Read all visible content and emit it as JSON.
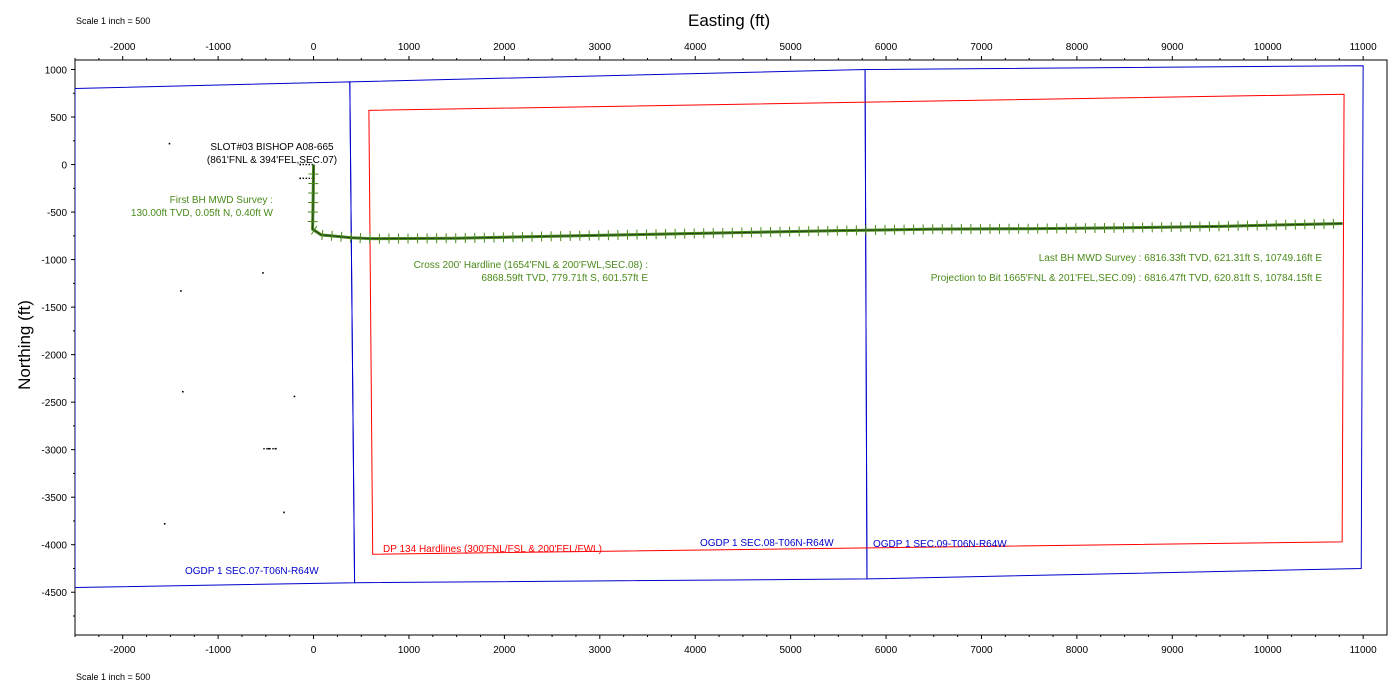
{
  "header": {
    "scale_top": "Scale 1 inch = 500",
    "scale_bottom": "Scale 1 inch = 500"
  },
  "chart_data": {
    "type": "line",
    "title": "",
    "xlabel": "Easting (ft)",
    "ylabel": "Northing (ft)",
    "xlim": [
      -2500,
      11250
    ],
    "ylim": [
      -4950,
      1100
    ],
    "x_ticks": [
      -2000,
      -1000,
      0,
      1000,
      2000,
      3000,
      4000,
      5000,
      6000,
      7000,
      8000,
      9000,
      10000,
      11000
    ],
    "y_ticks": [
      1000,
      500,
      0,
      -500,
      -1000,
      -1500,
      -2000,
      -2500,
      -3000,
      -3500,
      -4000,
      -4500
    ],
    "grid": false,
    "colors": {
      "section": "#0000cc",
      "hardline": "#ff0000",
      "wellpath": "#4a8a1a",
      "wellpath_line": "#1f3f1f",
      "slot": "#000000"
    },
    "sections": [
      {
        "name": "OGDP 1 SEC.07-T06N-R64W",
        "points": [
          [
            -2500,
            800
          ],
          [
            380,
            870
          ],
          [
            430,
            -4400
          ],
          [
            -2500,
            -4450
          ]
        ]
      },
      {
        "name": "OGDP 1 SEC.08-T06N-R64W",
        "points": [
          [
            380,
            870
          ],
          [
            5780,
            1000
          ],
          [
            5800,
            -4360
          ],
          [
            430,
            -4400
          ]
        ]
      },
      {
        "name": "OGDP 1 SEC.09-T06N-R64W",
        "points": [
          [
            5780,
            1000
          ],
          [
            11000,
            1040
          ],
          [
            10980,
            -4250
          ],
          [
            5800,
            -4360
          ]
        ]
      }
    ],
    "hardline": {
      "name": "DP 134 Hardlines (300'FNL/FSL & 200'FEL/FWL)",
      "points": [
        [
          580,
          570
        ],
        [
          10800,
          740
        ],
        [
          10780,
          -3970
        ],
        [
          620,
          -4100
        ]
      ]
    },
    "wellpath": {
      "name": "SLOT#03 BISHOP A08-665",
      "points": [
        [
          0,
          0
        ],
        [
          -1,
          -130
        ],
        [
          -5,
          -400
        ],
        [
          -10,
          -680
        ],
        [
          80,
          -740
        ],
        [
          400,
          -770
        ],
        [
          601.57,
          -779.71
        ],
        [
          1500,
          -775
        ],
        [
          2500,
          -755
        ],
        [
          3500,
          -735
        ],
        [
          4500,
          -715
        ],
        [
          5500,
          -695
        ],
        [
          6500,
          -680
        ],
        [
          7500,
          -675
        ],
        [
          8500,
          -665
        ],
        [
          9500,
          -650
        ],
        [
          10749.16,
          -621.31
        ],
        [
          10784.15,
          -620.81
        ]
      ]
    },
    "wellpath_survey_interval_ft": 100,
    "slot_markers": [
      [
        -1510,
        220
      ],
      [
        -530,
        -1140
      ],
      [
        -1390,
        -1330
      ],
      [
        -1370,
        -2390
      ],
      [
        -200,
        -2440
      ],
      [
        -1560,
        -3780
      ],
      [
        -310,
        -3660
      ],
      [
        -400,
        -2990
      ],
      [
        -140,
        0
      ],
      [
        -140,
        -145
      ],
      [
        -470,
        -2990
      ]
    ],
    "annotations": [
      {
        "text": "SLOT#03 BISHOP A08-665",
        "color": "#000000"
      },
      {
        "text": "(861'FNL & 394'FEL,SEC.07)",
        "color": "#000000"
      },
      {
        "text": "First BH MWD Survey :",
        "color": "#4a8a1a"
      },
      {
        "text": "130.00ft TVD, 0.05ft N, 0.40ft W",
        "color": "#4a8a1a"
      },
      {
        "text": "Cross 200' Hardline (1654'FNL & 200'FWL,SEC.08) :",
        "color": "#4a8a1a"
      },
      {
        "text": "6868.59ft TVD, 779.71ft S, 601.57ft E",
        "color": "#4a8a1a"
      },
      {
        "text": "Last BH MWD Survey : 6816.33ft TVD, 621.31ft S, 10749.16ft E",
        "color": "#4a8a1a"
      },
      {
        "text": "Projection to Bit 1665'FNL & 201'FEL,SEC.09) : 6816.47ft TVD, 620.81ft S, 10784.15ft E",
        "color": "#4a8a1a"
      },
      {
        "text": "DP 134 Hardlines (300'FNL/FSL & 200'FEL/FWL)",
        "color": "#ff0000"
      },
      {
        "text": "OGDP 1 SEC.07-T06N-R64W",
        "color": "#0000cc"
      },
      {
        "text": "OGDP 1 SEC.08-T06N-R64W",
        "color": "#0000cc"
      },
      {
        "text": "OGDP 1 SEC.09-T06N-R64W",
        "color": "#0000cc"
      }
    ]
  }
}
